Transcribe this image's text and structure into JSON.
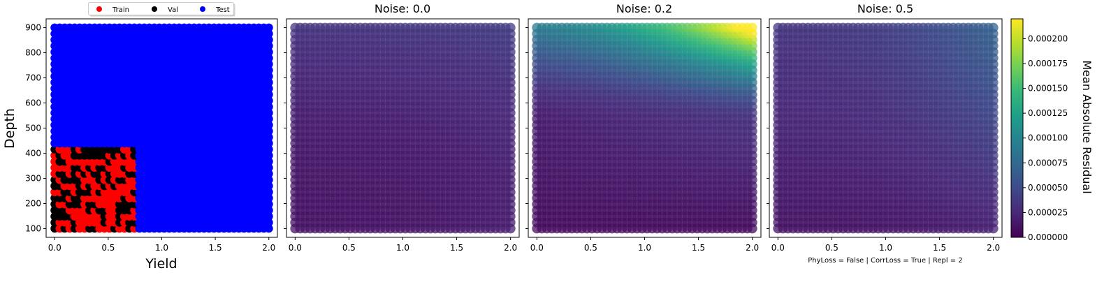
{
  "chart_data": [
    {
      "type": "scatter",
      "title": "",
      "xlabel": "Yield",
      "ylabel": "Depth",
      "xlim": [
        -0.08,
        2.08
      ],
      "ylim": [
        65,
        935
      ],
      "xticks": [
        "0.0",
        "0.5",
        "1.0",
        "1.5",
        "2.0"
      ],
      "yticks": [
        "100",
        "200",
        "300",
        "400",
        "500",
        "600",
        "700",
        "800",
        "900"
      ],
      "legend": {
        "placement": "top-center",
        "entries": [
          "Train",
          "Val",
          "Test"
        ]
      },
      "series": [
        {
          "name": "Train",
          "color": "#ff0000",
          "x_range": [
            0.0,
            0.78
          ],
          "y_range": [
            100,
            420
          ]
        },
        {
          "name": "Val",
          "color": "#000000",
          "x_range": [
            0.0,
            0.78
          ],
          "y_range": [
            100,
            420
          ]
        },
        {
          "name": "Test",
          "color": "#0000ff",
          "x_range": [
            0.0,
            2.0
          ],
          "y_range": [
            100,
            900
          ]
        }
      ]
    },
    {
      "type": "heatmap",
      "title": "Noise: 0.0",
      "xticks": [
        "0.0",
        "0.5",
        "1.0",
        "1.5",
        "2.0"
      ],
      "x_range": [
        0.0,
        2.0
      ],
      "y_range": [
        100,
        900
      ],
      "peak_value": 3e-05,
      "peak_location": "top"
    },
    {
      "type": "heatmap",
      "title": "Noise: 0.2",
      "xticks": [
        "0.0",
        "0.5",
        "1.0",
        "1.5",
        "2.0"
      ],
      "x_range": [
        0.0,
        2.0
      ],
      "y_range": [
        100,
        900
      ],
      "peak_value": 0.00022,
      "peak_location": "top-right"
    },
    {
      "type": "heatmap",
      "title": "Noise: 0.5",
      "xticks": [
        "0.0",
        "0.5",
        "1.0",
        "1.5",
        "2.0"
      ],
      "x_range": [
        0.0,
        2.0
      ],
      "y_range": [
        100,
        900
      ],
      "peak_value": 5e-05,
      "peak_location": "top-right"
    }
  ],
  "colorbar": {
    "label": "Mean Absolute Residual",
    "colormap": "viridis",
    "range": [
      0.0,
      0.00022
    ],
    "ticks": [
      "0.000000",
      "0.000025",
      "0.000050",
      "0.000075",
      "0.000100",
      "0.000125",
      "0.000150",
      "0.000175",
      "0.000200"
    ]
  },
  "footer_text": "PhyLoss = False | CorrLoss = True | Repl = 2",
  "colors": {
    "train": "#ff0000",
    "val": "#000000",
    "test": "#0000ff"
  }
}
